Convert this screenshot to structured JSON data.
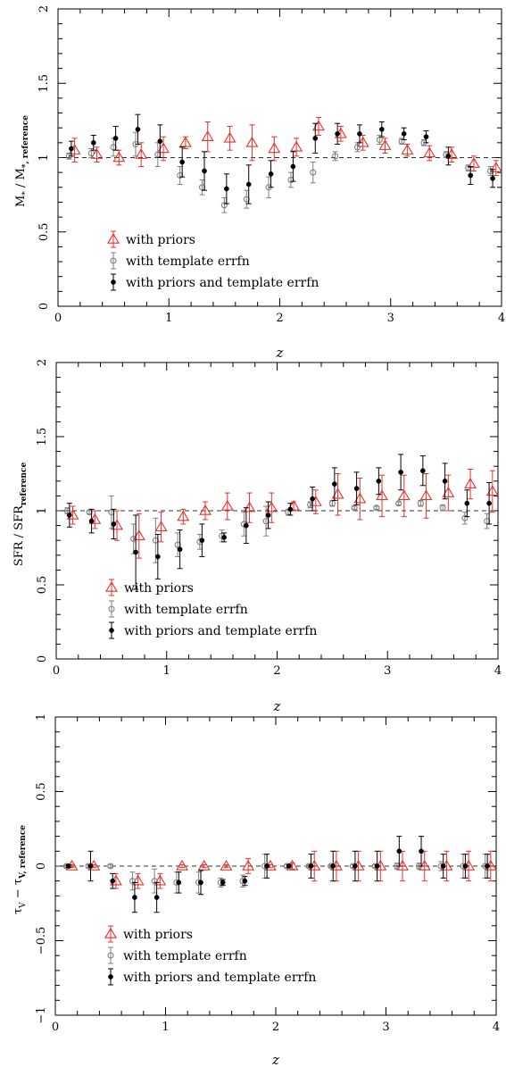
{
  "colors": {
    "priors": "#e8302a",
    "template": "#7f7f7f",
    "both": "#000000",
    "axis": "#000000",
    "reference_line": "#333333"
  },
  "legend_entries": [
    "with priors",
    "with template errfn",
    "with priors and template errfn"
  ],
  "chart_data": [
    {
      "type": "scatter",
      "panel": "top",
      "ylabel": "M* / M*, reference",
      "ylabel_parts": {
        "num": "M",
        "num_sub": "*",
        "den": "M",
        "den_sub": "*, reference"
      },
      "xlabel": "z",
      "xlim": [
        0,
        4
      ],
      "ylim": [
        0,
        2
      ],
      "x_ticks": [
        0,
        1,
        2,
        3,
        4
      ],
      "y_ticks": [
        0,
        0.5,
        1,
        1.5,
        2
      ],
      "y_tick_labels": [
        "0",
        "0.5",
        "1",
        "1.5",
        "2"
      ],
      "reference_line": 1,
      "grid": false,
      "legend_placement": "lower-left",
      "series": [
        {
          "name": "with priors",
          "marker": "triangle",
          "x": [
            0.15,
            0.35,
            0.55,
            0.75,
            0.95,
            1.15,
            1.35,
            1.55,
            1.75,
            1.95,
            2.15,
            2.35,
            2.55,
            2.75,
            2.95,
            3.15,
            3.35,
            3.55,
            3.75,
            3.95
          ],
          "y": [
            1.05,
            1.02,
            1.0,
            1.02,
            1.06,
            1.1,
            1.14,
            1.13,
            1.1,
            1.06,
            1.07,
            1.21,
            1.16,
            1.1,
            1.08,
            1.05,
            1.03,
            1.02,
            0.96,
            0.93
          ],
          "err": [
            0.08,
            0.05,
            0.05,
            0.08,
            0.08,
            0.04,
            0.1,
            0.08,
            0.12,
            0.08,
            0.06,
            0.06,
            0.05,
            0.05,
            0.05,
            0.04,
            0.05,
            0.05,
            0.05,
            0.05
          ]
        },
        {
          "name": "with template errfn",
          "marker": "circle",
          "x": [
            0.1,
            0.3,
            0.5,
            0.7,
            0.9,
            1.1,
            1.3,
            1.5,
            1.7,
            1.9,
            2.1,
            2.3,
            2.5,
            2.7,
            2.9,
            3.1,
            3.3,
            3.5,
            3.7,
            3.9
          ],
          "y": [
            1.01,
            1.03,
            1.07,
            1.09,
            1.02,
            0.88,
            0.8,
            0.68,
            0.72,
            0.8,
            0.85,
            0.9,
            1.01,
            1.07,
            1.12,
            1.11,
            1.1,
            1.02,
            0.93,
            0.91
          ],
          "err": [
            0.02,
            0.03,
            0.06,
            0.08,
            0.08,
            0.06,
            0.05,
            0.05,
            0.06,
            0.07,
            0.05,
            0.07,
            0.03,
            0.03,
            0.03,
            0.02,
            0.02,
            0.02,
            0.02,
            0.03
          ]
        },
        {
          "name": "with priors and template errfn",
          "marker": "dot",
          "x": [
            0.12,
            0.32,
            0.52,
            0.72,
            0.92,
            1.12,
            1.32,
            1.52,
            1.72,
            1.92,
            2.12,
            2.32,
            2.52,
            2.72,
            2.92,
            3.12,
            3.32,
            3.52,
            3.72,
            3.92
          ],
          "y": [
            1.06,
            1.1,
            1.13,
            1.19,
            1.11,
            0.97,
            0.91,
            0.79,
            0.82,
            0.89,
            0.94,
            1.13,
            1.16,
            1.16,
            1.19,
            1.16,
            1.14,
            1.01,
            0.88,
            0.86
          ],
          "err": [
            0.05,
            0.05,
            0.08,
            0.1,
            0.11,
            0.1,
            0.13,
            0.1,
            0.13,
            0.09,
            0.1,
            0.1,
            0.07,
            0.06,
            0.05,
            0.04,
            0.04,
            0.06,
            0.06,
            0.06
          ]
        }
      ]
    },
    {
      "type": "scatter",
      "panel": "middle",
      "ylabel": "SFR / SFR reference",
      "ylabel_parts": {
        "num": "SFR",
        "num_sub": "",
        "den": "SFR",
        "den_sub": "reference"
      },
      "xlabel": "z",
      "xlim": [
        0,
        4
      ],
      "ylim": [
        0,
        2
      ],
      "x_ticks": [
        0,
        1,
        2,
        3,
        4
      ],
      "y_ticks": [
        0,
        0.5,
        1,
        1.5,
        2
      ],
      "y_tick_labels": [
        "0",
        "0.5",
        "1",
        "1.5",
        "2"
      ],
      "reference_line": 1,
      "grid": false,
      "legend_placement": "lower-left",
      "series": [
        {
          "name": "with priors",
          "marker": "triangle",
          "x": [
            0.15,
            0.35,
            0.55,
            0.75,
            0.95,
            1.15,
            1.35,
            1.55,
            1.75,
            1.95,
            2.15,
            2.35,
            2.55,
            2.75,
            2.95,
            3.15,
            3.35,
            3.55,
            3.75,
            3.95
          ],
          "y": [
            0.97,
            0.94,
            0.9,
            0.83,
            0.89,
            0.96,
            1.0,
            1.03,
            1.02,
            1.02,
            1.03,
            1.06,
            1.11,
            1.08,
            1.1,
            1.1,
            1.1,
            1.12,
            1.18,
            1.13
          ],
          "err": [
            0.06,
            0.06,
            0.1,
            0.15,
            0.1,
            0.05,
            0.06,
            0.09,
            0.1,
            0.1,
            0.03,
            0.08,
            0.14,
            0.14,
            0.14,
            0.14,
            0.15,
            0.12,
            0.1,
            0.14
          ]
        },
        {
          "name": "with template errfn",
          "marker": "circle",
          "x": [
            0.1,
            0.3,
            0.5,
            0.7,
            0.9,
            1.1,
            1.3,
            1.5,
            1.7,
            1.9,
            2.1,
            2.3,
            2.5,
            2.7,
            2.9,
            3.1,
            3.3,
            3.5,
            3.7,
            3.9
          ],
          "y": [
            1.0,
            0.99,
            0.99,
            0.81,
            0.8,
            0.77,
            0.79,
            0.83,
            0.91,
            0.93,
            0.99,
            1.04,
            1.05,
            1.02,
            1.02,
            1.05,
            1.05,
            1.02,
            0.95,
            0.93
          ],
          "err": [
            0.02,
            0.01,
            0.11,
            0.1,
            0.15,
            0.08,
            0.05,
            0.04,
            0.08,
            0.1,
            0.02,
            0.02,
            0.02,
            0.01,
            0.01,
            0.01,
            0.02,
            0.02,
            0.04,
            0.05
          ]
        },
        {
          "name": "with priors and template errfn",
          "marker": "dot",
          "x": [
            0.12,
            0.32,
            0.52,
            0.72,
            0.92,
            1.12,
            1.32,
            1.52,
            1.72,
            1.92,
            2.12,
            2.32,
            2.52,
            2.72,
            2.92,
            3.12,
            3.32,
            3.52,
            3.72,
            3.92
          ],
          "y": [
            0.97,
            0.93,
            0.91,
            0.72,
            0.69,
            0.74,
            0.8,
            0.82,
            0.9,
            0.97,
            1.01,
            1.08,
            1.18,
            1.15,
            1.2,
            1.26,
            1.27,
            1.2,
            1.05,
            1.05
          ],
          "err": [
            0.08,
            0.08,
            0.1,
            0.25,
            0.15,
            0.13,
            0.11,
            0.03,
            0.12,
            0.09,
            0.04,
            0.08,
            0.11,
            0.11,
            0.09,
            0.12,
            0.1,
            0.12,
            0.09,
            0.14
          ]
        }
      ]
    },
    {
      "type": "scatter",
      "panel": "bottom",
      "ylabel": "τV − τV, reference",
      "ylabel_parts": {
        "num": "τ",
        "num_sub": "V",
        "den": "τ",
        "den_sub": "V, reference",
        "operator": "−"
      },
      "xlabel": "z",
      "xlim": [
        0,
        4
      ],
      "ylim": [
        -1,
        1
      ],
      "x_ticks": [
        0,
        1,
        2,
        3,
        4
      ],
      "y_ticks": [
        -1,
        -0.5,
        0,
        0.5,
        1
      ],
      "y_tick_labels": [
        "−1",
        "−0.5",
        "0",
        "0.5",
        "1"
      ],
      "reference_line": 0,
      "grid": false,
      "legend_placement": "lower-left",
      "series": [
        {
          "name": "with priors",
          "marker": "triangle",
          "x": [
            0.15,
            0.35,
            0.55,
            0.75,
            0.95,
            1.15,
            1.35,
            1.55,
            1.75,
            1.95,
            2.15,
            2.35,
            2.55,
            2.75,
            2.95,
            3.15,
            3.35,
            3.55,
            3.75,
            3.95
          ],
          "y": [
            0.0,
            0.0,
            -0.1,
            -0.1,
            -0.1,
            0.0,
            0.0,
            0.0,
            0.0,
            0.0,
            0.0,
            0.0,
            0.0,
            0.0,
            0.0,
            0.0,
            0.0,
            0.0,
            0.0,
            0.0
          ],
          "err": [
            0.01,
            0.01,
            0.05,
            0.05,
            0.05,
            0.01,
            0.01,
            0.01,
            0.05,
            0.01,
            0.02,
            0.1,
            0.1,
            0.1,
            0.1,
            0.1,
            0.1,
            0.1,
            0.1,
            0.1
          ]
        },
        {
          "name": "with template errfn",
          "marker": "circle",
          "x": [
            0.1,
            0.3,
            0.5,
            0.7,
            0.9,
            1.1,
            1.3,
            1.5,
            1.7,
            1.9,
            2.1,
            2.3,
            2.5,
            2.7,
            2.9,
            3.1,
            3.3,
            3.5,
            3.7,
            3.9
          ],
          "y": [
            0.0,
            0.0,
            0.0,
            -0.1,
            -0.1,
            -0.11,
            -0.11,
            -0.11,
            -0.1,
            0.0,
            0.0,
            0.0,
            0.0,
            0.0,
            0.0,
            0.0,
            0.0,
            0.0,
            0.0,
            0.0
          ],
          "err": [
            0.01,
            0.01,
            0.01,
            0.06,
            0.08,
            0.07,
            0.07,
            0.03,
            0.04,
            0.08,
            0.01,
            0.01,
            0.01,
            0.01,
            0.01,
            0.02,
            0.02,
            0.03,
            0.08,
            0.08
          ]
        },
        {
          "name": "with priors and template errfn",
          "marker": "dot",
          "x": [
            0.12,
            0.32,
            0.52,
            0.72,
            0.92,
            1.12,
            1.32,
            1.52,
            1.72,
            1.92,
            2.12,
            2.32,
            2.52,
            2.72,
            2.92,
            3.12,
            3.32,
            3.52,
            3.72,
            3.92
          ],
          "y": [
            0.0,
            0.0,
            -0.1,
            -0.21,
            -0.21,
            -0.11,
            -0.11,
            -0.11,
            -0.1,
            0.0,
            0.0,
            0.0,
            0.0,
            0.0,
            0.0,
            0.1,
            0.1,
            0.0,
            0.0,
            0.0
          ],
          "err": [
            0.01,
            0.1,
            0.05,
            0.1,
            0.1,
            0.07,
            0.08,
            0.02,
            0.03,
            0.08,
            0.01,
            0.08,
            0.1,
            0.1,
            0.1,
            0.1,
            0.1,
            0.08,
            0.08,
            0.08
          ]
        }
      ]
    }
  ]
}
